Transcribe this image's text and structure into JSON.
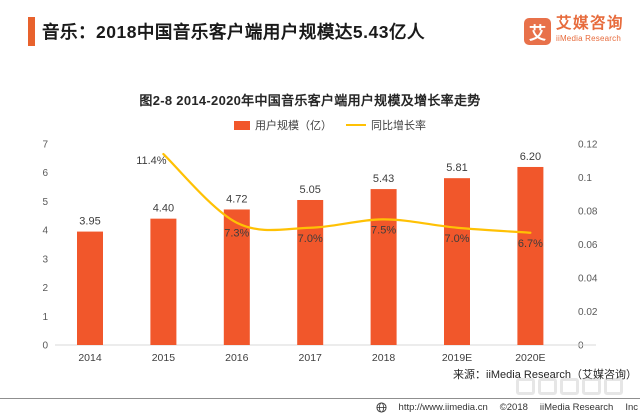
{
  "header": {
    "title": "音乐：2018中国音乐客户端用户规模达5.43亿人",
    "accent_color": "#E8622D",
    "logo": {
      "mark": "艾",
      "mark_bg": "#E8714A",
      "name_cn": "艾媒咨询",
      "name_en": "iiMedia Research",
      "text_color": "#E76B3C"
    }
  },
  "chart": {
    "title": "图2-8 2014-2020年中国音乐客户端用户规模及增长率走势",
    "legend": [
      {
        "label": "用户规模（亿）",
        "type": "bar",
        "color": "#F1572B"
      },
      {
        "label": "同比增长率",
        "type": "line",
        "color": "#FFC104"
      }
    ],
    "source": "来源：iiMedia Research（艾媒咨询）"
  },
  "chart_data": {
    "type": "bar+line",
    "title": "图2-8 2014-2020年中国音乐客户端用户规模及增长率走势",
    "categories": [
      "2014",
      "2015",
      "2016",
      "2017",
      "2018",
      "2019E",
      "2020E"
    ],
    "series": [
      {
        "name": "用户规模（亿）",
        "type": "bar",
        "axis": "left",
        "color": "#F1572B",
        "values": [
          3.95,
          4.4,
          4.72,
          5.05,
          5.43,
          5.81,
          6.2
        ],
        "labels": [
          "3.95",
          "4.40",
          "4.72",
          "5.05",
          "5.43",
          "5.81",
          "6.20"
        ]
      },
      {
        "name": "同比增长率",
        "type": "line",
        "axis": "right",
        "color": "#FFC104",
        "values": [
          null,
          0.114,
          0.073,
          0.07,
          0.075,
          0.07,
          0.067
        ],
        "labels": [
          null,
          "11.4%",
          "7.3%",
          "7.0%",
          "7.5%",
          "7.0%",
          "6.7%"
        ]
      }
    ],
    "left_axis": {
      "min": 0,
      "max": 7,
      "step": 1,
      "ticks": [
        "0",
        "1",
        "2",
        "3",
        "4",
        "5",
        "6",
        "7"
      ]
    },
    "right_axis": {
      "min": 0,
      "max": 0.12,
      "step": 0.02,
      "ticks": [
        "0",
        "0.02",
        "0.04",
        "0.06",
        "0.08",
        "0.1",
        "0.12"
      ]
    },
    "grid": false,
    "legend_position": "top",
    "label_color": "#3d3d3d",
    "axis_tick_color": "#595959",
    "axis_line_color": "#d9d9d9"
  },
  "footer": {
    "url": "http://www.iimedia.cn",
    "copyright": "©2018",
    "company": "iiMedia Research",
    "suffix": "Inc"
  }
}
